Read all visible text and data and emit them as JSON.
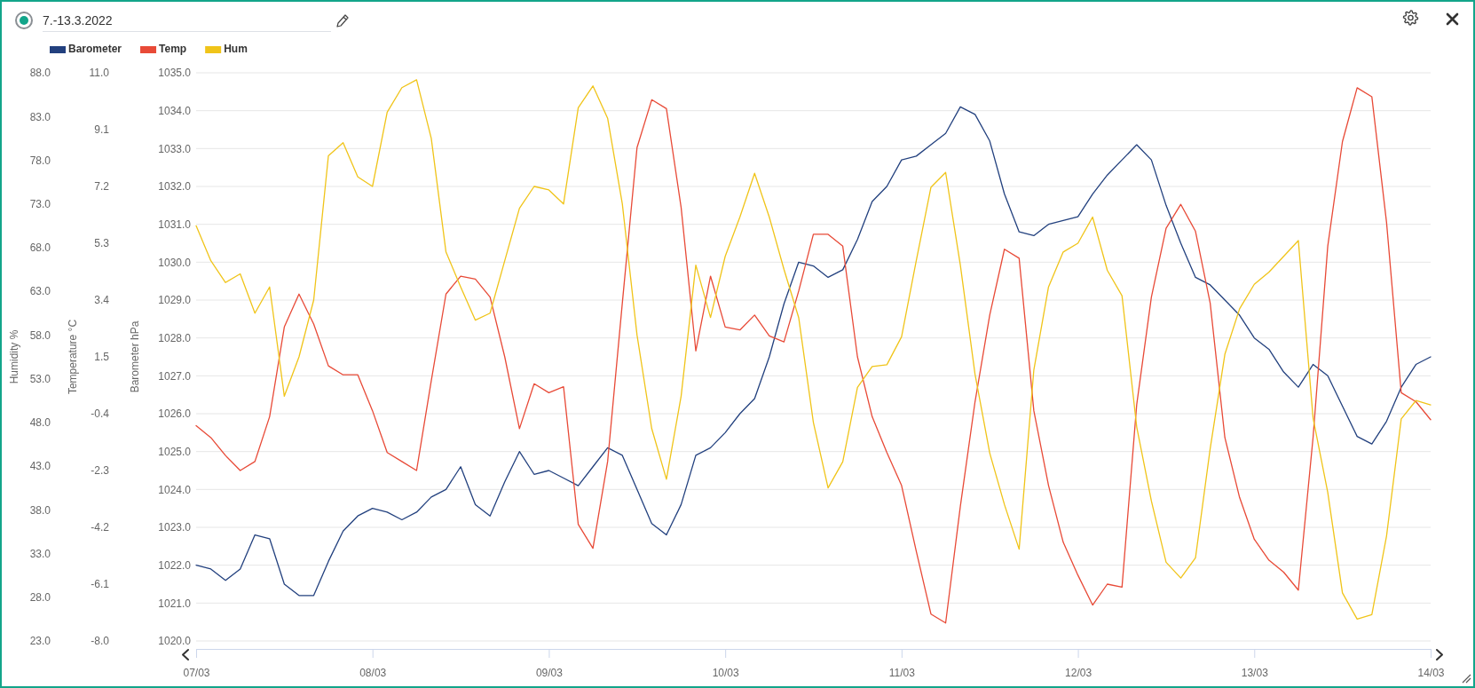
{
  "chart_data": {
    "type": "line",
    "title": "7.-13.3.2022",
    "ylabel": "Barometer hPa",
    "y2label": "Humidity %",
    "y3label": "Temperature °C",
    "x": [
      "2022-03-07T00:00",
      "2022-03-07T02:00",
      "2022-03-07T04:00",
      "2022-03-07T06:00",
      "2022-03-07T08:00",
      "2022-03-07T10:00",
      "2022-03-07T12:00",
      "2022-03-07T14:00",
      "2022-03-07T16:00",
      "2022-03-07T18:00",
      "2022-03-07T20:00",
      "2022-03-07T22:00",
      "2022-03-08T00:00",
      "2022-03-08T02:00",
      "2022-03-08T04:00",
      "2022-03-08T06:00",
      "2022-03-08T08:00",
      "2022-03-08T10:00",
      "2022-03-08T12:00",
      "2022-03-08T14:00",
      "2022-03-08T16:00",
      "2022-03-08T18:00",
      "2022-03-08T20:00",
      "2022-03-08T22:00",
      "2022-03-09T00:00",
      "2022-03-09T02:00",
      "2022-03-09T04:00",
      "2022-03-09T06:00",
      "2022-03-09T08:00",
      "2022-03-09T10:00",
      "2022-03-09T12:00",
      "2022-03-09T14:00",
      "2022-03-09T16:00",
      "2022-03-09T18:00",
      "2022-03-09T20:00",
      "2022-03-09T22:00",
      "2022-03-10T00:00",
      "2022-03-10T02:00",
      "2022-03-10T04:00",
      "2022-03-10T06:00",
      "2022-03-10T08:00",
      "2022-03-10T10:00",
      "2022-03-10T12:00",
      "2022-03-10T14:00",
      "2022-03-10T16:00",
      "2022-03-10T18:00",
      "2022-03-10T20:00",
      "2022-03-10T22:00",
      "2022-03-11T00:00",
      "2022-03-11T02:00",
      "2022-03-11T04:00",
      "2022-03-11T06:00",
      "2022-03-11T08:00",
      "2022-03-11T10:00",
      "2022-03-11T12:00",
      "2022-03-11T14:00",
      "2022-03-11T16:00",
      "2022-03-11T18:00",
      "2022-03-11T20:00",
      "2022-03-11T22:00",
      "2022-03-12T00:00",
      "2022-03-12T02:00",
      "2022-03-12T04:00",
      "2022-03-12T06:00",
      "2022-03-12T08:00",
      "2022-03-12T10:00",
      "2022-03-12T12:00",
      "2022-03-12T14:00",
      "2022-03-12T16:00",
      "2022-03-12T18:00",
      "2022-03-12T20:00",
      "2022-03-12T22:00",
      "2022-03-13T00:00",
      "2022-03-13T02:00",
      "2022-03-13T04:00",
      "2022-03-13T06:00",
      "2022-03-13T08:00",
      "2022-03-13T10:00",
      "2022-03-13T12:00",
      "2022-03-13T14:00",
      "2022-03-13T16:00",
      "2022-03-13T18:00",
      "2022-03-13T20:00",
      "2022-03-13T22:00",
      "2022-03-14T00:00"
    ],
    "series": [
      {
        "name": "Barometer",
        "color": "#22407e",
        "values": [
          1022.0,
          1021.9,
          1021.6,
          1021.9,
          1022.8,
          1022.7,
          1021.5,
          1021.2,
          1021.2,
          1022.1,
          1022.9,
          1023.3,
          1023.5,
          1023.4,
          1023.2,
          1023.4,
          1023.8,
          1024.0,
          1024.6,
          1023.6,
          1023.3,
          1024.2,
          1025.0,
          1024.4,
          1024.5,
          1024.3,
          1024.1,
          1024.6,
          1025.1,
          1024.9,
          1024.0,
          1023.1,
          1022.8,
          1023.6,
          1024.9,
          1025.1,
          1025.5,
          1026.0,
          1026.4,
          1027.5,
          1028.9,
          1030.0,
          1029.9,
          1029.6,
          1029.8,
          1030.6,
          1031.6,
          1032.0,
          1032.7,
          1032.8,
          1033.1,
          1033.4,
          1034.1,
          1033.9,
          1033.2,
          1031.8,
          1030.8,
          1030.7,
          1031.0,
          1031.1,
          1031.2,
          1031.8,
          1032.3,
          1032.7,
          1033.1,
          1032.7,
          1031.5,
          1030.5,
          1029.6,
          1029.4,
          1029.0,
          1028.6,
          1028.0,
          1027.7,
          1027.1,
          1026.7,
          1027.3,
          1027.0,
          1026.2,
          1025.4,
          1025.2,
          1025.8,
          1026.7,
          1027.3,
          1027.5
        ]
      },
      {
        "name": "Temp",
        "color": "#e84a37",
        "axis": "y3",
        "values": [
          -0.8,
          -1.2,
          -1.8,
          -2.3,
          -2.0,
          -0.5,
          2.5,
          3.6,
          2.6,
          1.2,
          0.9,
          0.9,
          -0.3,
          -1.7,
          -2.0,
          -2.3,
          0.7,
          3.6,
          4.2,
          4.1,
          3.5,
          1.5,
          -0.9,
          0.6,
          0.3,
          0.5,
          -4.1,
          -4.9,
          -2.0,
          3.3,
          8.5,
          10.1,
          9.8,
          6.5,
          1.7,
          4.2,
          2.5,
          2.4,
          2.9,
          2.2,
          2.0,
          3.7,
          5.6,
          5.6,
          5.2,
          1.5,
          -0.5,
          -1.7,
          -2.8,
          -5.0,
          -7.1,
          -7.4,
          -3.5,
          0.0,
          2.9,
          5.1,
          4.8,
          -0.3,
          -2.8,
          -4.7,
          -5.8,
          -6.8,
          -6.1,
          -6.2,
          -0.1,
          3.5,
          5.8,
          6.6,
          5.7,
          3.3,
          -1.2,
          -3.2,
          -4.6,
          -5.3,
          -5.7,
          -6.3,
          -1.2,
          5.2,
          8.7,
          10.5,
          10.2,
          6.0,
          0.3,
          0.0,
          -0.6
        ]
      },
      {
        "name": "Hum",
        "color": "#f0c419",
        "axis": "y2",
        "values": [
          70.5,
          66.5,
          64.0,
          65.0,
          60.5,
          63.5,
          51.0,
          55.5,
          62.0,
          78.5,
          80.0,
          76.1,
          75.0,
          83.5,
          86.3,
          87.2,
          80.5,
          67.5,
          63.5,
          59.7,
          60.5,
          66.5,
          72.5,
          75.0,
          74.6,
          73.0,
          84.0,
          86.5,
          82.8,
          73.0,
          58.0,
          47.3,
          41.5,
          51.0,
          66.0,
          60.0,
          67.0,
          71.5,
          76.5,
          71.5,
          65.5,
          60.0,
          48.0,
          40.5,
          43.5,
          52.0,
          54.4,
          54.6,
          57.8,
          66.5,
          74.9,
          76.6,
          66.0,
          53.5,
          44.5,
          38.6,
          33.5,
          54.0,
          63.5,
          67.5,
          68.5,
          71.5,
          65.4,
          62.5,
          47.5,
          39.0,
          32.0,
          30.2,
          32.5,
          45.0,
          55.8,
          61.0,
          63.8,
          65.2,
          67.0,
          68.8,
          48.5,
          40.0,
          28.5,
          25.5,
          26.0,
          35.0,
          48.4,
          50.5,
          50.0
        ]
      }
    ],
    "xlim": [
      "2022-03-07",
      "2022-03-14"
    ],
    "xticks": [
      {
        "value": "2022-03-07",
        "label": "07/03"
      },
      {
        "value": "2022-03-08",
        "label": "08/03"
      },
      {
        "value": "2022-03-09",
        "label": "09/03"
      },
      {
        "value": "2022-03-10",
        "label": "10/03"
      },
      {
        "value": "2022-03-11",
        "label": "11/03"
      },
      {
        "value": "2022-03-12",
        "label": "12/03"
      },
      {
        "value": "2022-03-13",
        "label": "13/03"
      },
      {
        "value": "2022-03-14",
        "label": "14/03"
      }
    ],
    "ylim": [
      1020,
      1035
    ],
    "yticks": [
      {
        "value": 1020,
        "label": "1020.0"
      },
      {
        "value": 1021,
        "label": "1021.0"
      },
      {
        "value": 1022,
        "label": "1022.0"
      },
      {
        "value": 1023,
        "label": "1023.0"
      },
      {
        "value": 1024,
        "label": "1024.0"
      },
      {
        "value": 1025,
        "label": "1025.0"
      },
      {
        "value": 1026,
        "label": "1026.0"
      },
      {
        "value": 1027,
        "label": "1027.0"
      },
      {
        "value": 1028,
        "label": "1028.0"
      },
      {
        "value": 1029,
        "label": "1029.0"
      },
      {
        "value": 1030,
        "label": "1030.0"
      },
      {
        "value": 1031,
        "label": "1031.0"
      },
      {
        "value": 1032,
        "label": "1032.0"
      },
      {
        "value": 1033,
        "label": "1033.0"
      },
      {
        "value": 1034,
        "label": "1034.0"
      },
      {
        "value": 1035,
        "label": "1035.0"
      }
    ],
    "y2lim": [
      23,
      88
    ],
    "y2ticks": [
      {
        "value": 23,
        "label": "23.0"
      },
      {
        "value": 28,
        "label": "28.0"
      },
      {
        "value": 33,
        "label": "33.0"
      },
      {
        "value": 38,
        "label": "38.0"
      },
      {
        "value": 43,
        "label": "43.0"
      },
      {
        "value": 48,
        "label": "48.0"
      },
      {
        "value": 53,
        "label": "53.0"
      },
      {
        "value": 58,
        "label": "58.0"
      },
      {
        "value": 63,
        "label": "63.0"
      },
      {
        "value": 68,
        "label": "68.0"
      },
      {
        "value": 73,
        "label": "73.0"
      },
      {
        "value": 78,
        "label": "78.0"
      },
      {
        "value": 83,
        "label": "83.0"
      },
      {
        "value": 88,
        "label": "88.0"
      }
    ],
    "y3lim": [
      -8,
      11
    ],
    "y3ticks": [
      {
        "value": -8,
        "label": "-8.0"
      },
      {
        "value": -6.1,
        "label": "-6.1"
      },
      {
        "value": -4.2,
        "label": "-4.2"
      },
      {
        "value": -2.3,
        "label": "-2.3"
      },
      {
        "value": -0.4,
        "label": "-0.4"
      },
      {
        "value": 1.5,
        "label": "1.5"
      },
      {
        "value": 3.4,
        "label": "3.4"
      },
      {
        "value": 5.3,
        "label": "5.3"
      },
      {
        "value": 7.2,
        "label": "7.2"
      },
      {
        "value": 9.1,
        "label": "9.1"
      },
      {
        "value": 11,
        "label": "11.0"
      }
    ],
    "grid": "y",
    "legend": "top left"
  }
}
